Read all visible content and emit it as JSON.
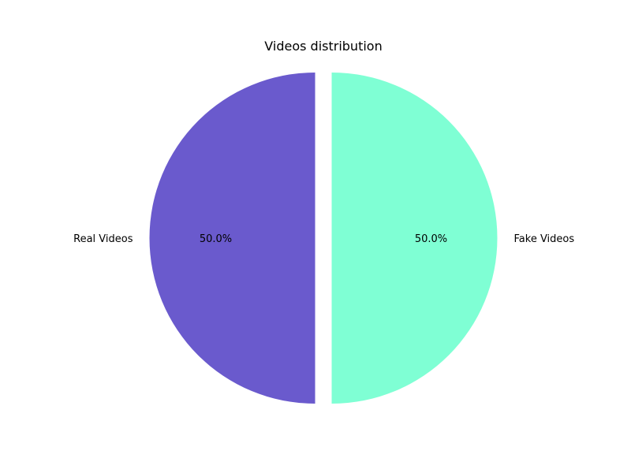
{
  "chart_data": {
    "type": "pie",
    "title": "Videos distribution",
    "slices": [
      {
        "label": "Real Videos",
        "value": 50.0,
        "pct_label": "50.0%",
        "color": "#6a5acd",
        "explode": 0.05
      },
      {
        "label": "Fake Videos",
        "value": 50.0,
        "pct_label": "50.0%",
        "color": "#7fffd4",
        "explode": 0.05
      }
    ],
    "start_angle_deg": 90,
    "direction": "counterclockwise",
    "legend": "none"
  }
}
